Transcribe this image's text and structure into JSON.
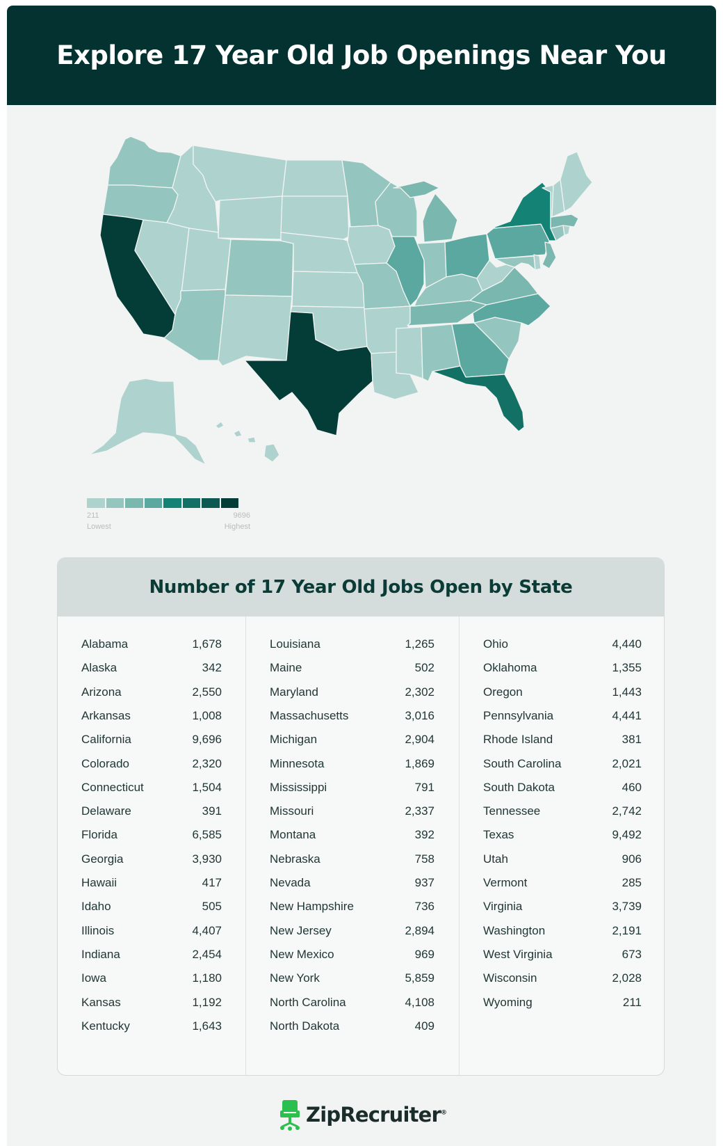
{
  "header": {
    "title": "Explore 17 Year Old Job Openings Near You"
  },
  "colors": {
    "scale": [
      "#aed2ce",
      "#94c5bf",
      "#79b7af",
      "#5aa8a0",
      "#148274",
      "#137065",
      "#0d5951",
      "#043d38"
    ],
    "header_bg": "#043230",
    "page_bg": "#f2f4f3"
  },
  "map": {
    "type": "choropleth",
    "region": "United States",
    "values_by_state": {
      "Alabama": 1678,
      "Alaska": 342,
      "Arizona": 2550,
      "Arkansas": 1008,
      "California": 9696,
      "Colorado": 2320,
      "Connecticut": 1504,
      "Delaware": 391,
      "Florida": 6585,
      "Georgia": 3930,
      "Hawaii": 417,
      "Idaho": 505,
      "Illinois": 4407,
      "Indiana": 2454,
      "Iowa": 1180,
      "Kansas": 1192,
      "Kentucky": 1643,
      "Louisiana": 1265,
      "Maine": 502,
      "Maryland": 2302,
      "Massachusetts": 3016,
      "Michigan": 2904,
      "Minnesota": 1869,
      "Mississippi": 791,
      "Missouri": 2337,
      "Montana": 392,
      "Nebraska": 758,
      "Nevada": 937,
      "New Hampshire": 736,
      "New Jersey": 2894,
      "New Mexico": 969,
      "New York": 5859,
      "North Carolina": 4108,
      "North Dakota": 409,
      "Ohio": 4440,
      "Oklahoma": 1355,
      "Oregon": 1443,
      "Pennsylvania": 4441,
      "Rhode Island": 381,
      "South Carolina": 2021,
      "South Dakota": 460,
      "Tennessee": 2742,
      "Texas": 9492,
      "Utah": 906,
      "Vermont": 285,
      "Virginia": 3739,
      "Washington": 2191,
      "West Virginia": 673,
      "Wisconsin": 2028,
      "Wyoming": 211
    }
  },
  "legend": {
    "min_value": "211",
    "max_value": "9696",
    "min_label": "Lowest",
    "max_label": "Highest"
  },
  "table": {
    "title": "Number of 17 Year Old Jobs Open by State",
    "columns": [
      [
        {
          "state": "Alabama",
          "jobs": "1,678"
        },
        {
          "state": "Alaska",
          "jobs": "342"
        },
        {
          "state": "Arizona",
          "jobs": "2,550"
        },
        {
          "state": "Arkansas",
          "jobs": "1,008"
        },
        {
          "state": "California",
          "jobs": "9,696"
        },
        {
          "state": "Colorado",
          "jobs": "2,320"
        },
        {
          "state": "Connecticut",
          "jobs": "1,504"
        },
        {
          "state": "Delaware",
          "jobs": "391"
        },
        {
          "state": "Florida",
          "jobs": "6,585"
        },
        {
          "state": "Georgia",
          "jobs": "3,930"
        },
        {
          "state": "Hawaii",
          "jobs": "417"
        },
        {
          "state": "Idaho",
          "jobs": "505"
        },
        {
          "state": "Illinois",
          "jobs": "4,407"
        },
        {
          "state": "Indiana",
          "jobs": "2,454"
        },
        {
          "state": "Iowa",
          "jobs": "1,180"
        },
        {
          "state": "Kansas",
          "jobs": "1,192"
        },
        {
          "state": "Kentucky",
          "jobs": "1,643"
        }
      ],
      [
        {
          "state": "Louisiana",
          "jobs": "1,265"
        },
        {
          "state": "Maine",
          "jobs": "502"
        },
        {
          "state": "Maryland",
          "jobs": "2,302"
        },
        {
          "state": "Massachusetts",
          "jobs": "3,016"
        },
        {
          "state": "Michigan",
          "jobs": "2,904"
        },
        {
          "state": "Minnesota",
          "jobs": "1,869"
        },
        {
          "state": "Mississippi",
          "jobs": "791"
        },
        {
          "state": "Missouri",
          "jobs": "2,337"
        },
        {
          "state": "Montana",
          "jobs": "392"
        },
        {
          "state": "Nebraska",
          "jobs": "758"
        },
        {
          "state": "Nevada",
          "jobs": "937"
        },
        {
          "state": "New Hampshire",
          "jobs": "736"
        },
        {
          "state": "New Jersey",
          "jobs": "2,894"
        },
        {
          "state": "New Mexico",
          "jobs": "969"
        },
        {
          "state": "New York",
          "jobs": "5,859"
        },
        {
          "state": "North Carolina",
          "jobs": "4,108"
        },
        {
          "state": "North Dakota",
          "jobs": "409"
        }
      ],
      [
        {
          "state": "Ohio",
          "jobs": "4,440"
        },
        {
          "state": "Oklahoma",
          "jobs": "1,355"
        },
        {
          "state": "Oregon",
          "jobs": "1,443"
        },
        {
          "state": "Pennsylvania",
          "jobs": "4,441"
        },
        {
          "state": "Rhode Island",
          "jobs": "381"
        },
        {
          "state": "South Carolina",
          "jobs": "2,021"
        },
        {
          "state": "South Dakota",
          "jobs": "460"
        },
        {
          "state": "Tennessee",
          "jobs": "2,742"
        },
        {
          "state": "Texas",
          "jobs": "9,492"
        },
        {
          "state": "Utah",
          "jobs": "906"
        },
        {
          "state": "Vermont",
          "jobs": "285"
        },
        {
          "state": "Virginia",
          "jobs": "3,739"
        },
        {
          "state": "Washington",
          "jobs": "2,191"
        },
        {
          "state": "West Virginia",
          "jobs": "673"
        },
        {
          "state": "Wisconsin",
          "jobs": "2,028"
        },
        {
          "state": "Wyoming",
          "jobs": "211"
        }
      ]
    ]
  },
  "footer": {
    "brand": "ZipRecruiter",
    "logo_icon": "chair-icon"
  }
}
